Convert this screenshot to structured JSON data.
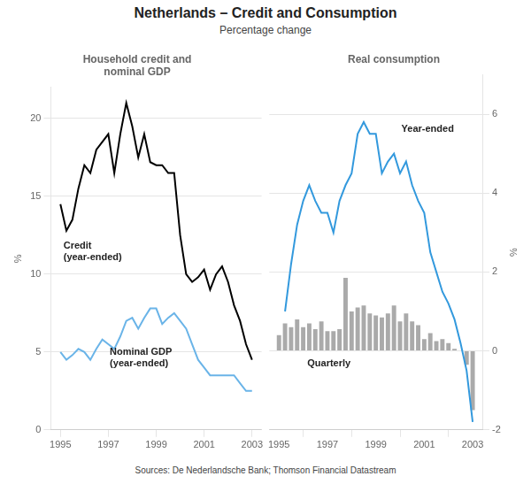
{
  "title": "Netherlands – Credit and Consumption",
  "subtitle": "Percentage change",
  "source": "Sources: De Nederlandsche Bank; Thomson Financial Datastream",
  "chart_data": [
    {
      "type": "line",
      "title": "Household credit and\nnominal GDP",
      "ylabel": "%",
      "xlim": [
        1994.6,
        2003.4
      ],
      "xticks": [
        1995,
        1997,
        1999,
        2001,
        2003
      ],
      "ylim": [
        0,
        22
      ],
      "yticks": [
        0,
        5,
        10,
        15,
        20
      ],
      "grid": true,
      "series": [
        {
          "color": "#000000",
          "x": [
            1995.0,
            1995.25,
            1995.5,
            1995.75,
            1996.0,
            1996.25,
            1996.5,
            1996.75,
            1997.0,
            1997.25,
            1997.5,
            1997.75,
            1998.0,
            1998.25,
            1998.5,
            1998.75,
            1999.0,
            1999.25,
            1999.5,
            1999.75,
            2000.0,
            2000.25,
            2000.5,
            2000.75,
            2001.0,
            2001.25,
            2001.5,
            2001.75,
            2002.0,
            2002.25,
            2002.5,
            2002.75,
            2003.0
          ],
          "values": [
            14.5,
            12.8,
            13.5,
            15.5,
            17.0,
            16.5,
            18.0,
            18.5,
            19.0,
            16.5,
            19.0,
            21.0,
            19.5,
            17.5,
            19.0,
            17.2,
            17.0,
            17.0,
            16.5,
            16.5,
            12.5,
            10.0,
            9.5,
            9.8,
            10.3,
            9.0,
            10.0,
            10.5,
            9.5,
            8.0,
            7.0,
            5.5,
            4.5
          ]
        },
        {
          "color": "#6ab4e8",
          "x": [
            1995.0,
            1995.25,
            1995.5,
            1995.75,
            1996.0,
            1996.25,
            1996.5,
            1996.75,
            1997.0,
            1997.25,
            1997.5,
            1997.75,
            1998.0,
            1998.25,
            1998.5,
            1998.75,
            1999.0,
            1999.25,
            1999.5,
            1999.75,
            2000.0,
            2000.25,
            2000.5,
            2000.75,
            2001.0,
            2001.25,
            2001.5,
            2001.75,
            2002.0,
            2002.25,
            2002.5,
            2002.75,
            2003.0
          ],
          "values": [
            5.0,
            4.5,
            4.8,
            5.2,
            5.0,
            4.5,
            5.2,
            5.8,
            5.5,
            5.2,
            6.0,
            7.0,
            7.2,
            6.5,
            7.2,
            7.8,
            7.8,
            6.8,
            7.2,
            7.5,
            7.0,
            6.5,
            5.5,
            4.5,
            4.0,
            3.5,
            3.5,
            3.5,
            3.5,
            3.5,
            3.0,
            2.5,
            2.5
          ]
        }
      ],
      "annotations": [
        "Credit\n(year-ended)",
        "Nominal GDP\n(year-ended)"
      ]
    },
    {
      "type": "bar",
      "title": "Real consumption",
      "ylabel": "%",
      "xlim": [
        1994.6,
        2003.4
      ],
      "xticks": [
        1995,
        1997,
        1999,
        2001,
        2003
      ],
      "ylim": [
        -2.0,
        7.0
      ],
      "yticks": [
        -2,
        0,
        2,
        4,
        6
      ],
      "grid": true,
      "series": [
        {
          "type": "bar",
          "color": "#aaaaaa",
          "x": [
            1995.0,
            1995.25,
            1995.5,
            1995.75,
            1996.0,
            1996.25,
            1996.5,
            1996.75,
            1997.0,
            1997.25,
            1997.5,
            1997.75,
            1998.0,
            1998.25,
            1998.5,
            1998.75,
            1999.0,
            1999.25,
            1999.5,
            1999.75,
            2000.0,
            2000.25,
            2000.5,
            2000.75,
            2001.0,
            2001.25,
            2001.5,
            2001.75,
            2002.0,
            2002.25,
            2002.5,
            2002.75,
            2003.0
          ],
          "values": [
            0.4,
            0.7,
            0.6,
            0.8,
            0.6,
            0.7,
            0.55,
            0.75,
            0.5,
            0.5,
            0.55,
            1.85,
            1.0,
            1.1,
            1.15,
            0.95,
            0.9,
            0.85,
            0.95,
            1.15,
            0.75,
            0.95,
            0.75,
            0.65,
            0.3,
            0.45,
            0.25,
            0.3,
            0.2,
            0.05,
            0.0,
            -0.35,
            -1.5
          ]
        },
        {
          "type": "line",
          "color": "#3399dd",
          "x": [
            1995.25,
            1995.5,
            1995.75,
            1996.0,
            1996.25,
            1996.5,
            1996.75,
            1997.0,
            1997.25,
            1997.5,
            1997.75,
            1998.0,
            1998.25,
            1998.5,
            1998.75,
            1999.0,
            1999.25,
            1999.5,
            1999.75,
            2000.0,
            2000.25,
            2000.5,
            2000.75,
            2001.0,
            2001.25,
            2001.5,
            2001.75,
            2002.0,
            2002.25,
            2002.5,
            2002.75,
            2003.0
          ],
          "values": [
            1.0,
            2.2,
            3.2,
            3.8,
            4.2,
            3.8,
            3.5,
            3.5,
            3.0,
            3.8,
            4.2,
            4.5,
            5.5,
            5.8,
            5.5,
            5.5,
            4.5,
            4.8,
            5.0,
            4.5,
            4.8,
            4.2,
            3.8,
            3.5,
            2.5,
            2.0,
            1.5,
            1.2,
            0.8,
            0.2,
            -0.5,
            -1.8
          ]
        }
      ],
      "annotations": [
        "Year-ended",
        "Quarterly"
      ]
    }
  ]
}
